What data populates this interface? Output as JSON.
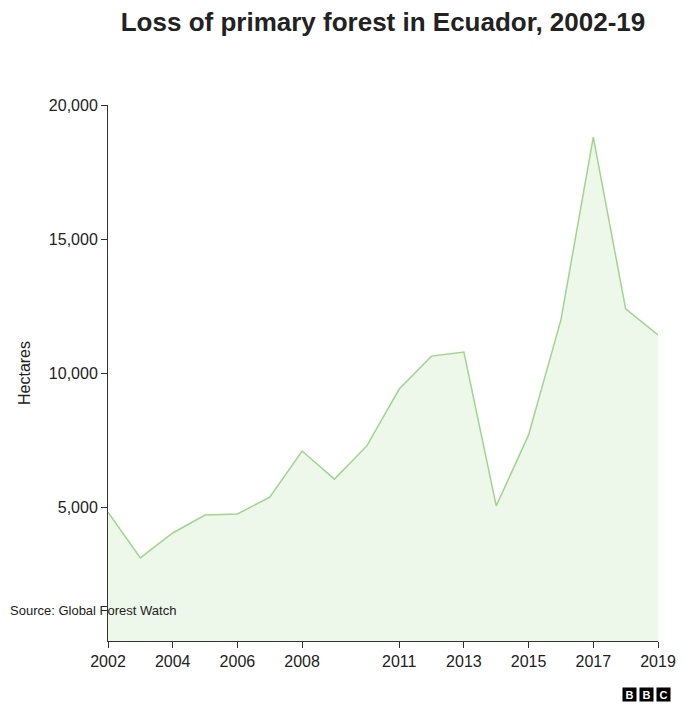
{
  "chart_data": {
    "type": "area",
    "title": "Loss of primary forest in Ecuador, 2002-19",
    "y_label": "Hectares",
    "source": "Source: Global Forest Watch",
    "logo": "BBC",
    "x": [
      2002,
      2003,
      2004,
      2005,
      2006,
      2007,
      2008,
      2009,
      2010,
      2011,
      2012,
      2013,
      2014,
      2015,
      2016,
      2017,
      2018,
      2019
    ],
    "values": [
      4810,
      3100,
      4030,
      4700,
      4740,
      5370,
      7090,
      6040,
      7280,
      9400,
      10630,
      10780,
      5040,
      7690,
      11980,
      18800,
      12390,
      11420
    ],
    "color": "#9dd68c",
    "xlim": [
      2002,
      2019
    ],
    "xticks": [
      2002,
      2004,
      2006,
      2008,
      2011,
      2013,
      2015,
      2017,
      2019
    ],
    "ylim": [
      0,
      20000
    ],
    "yticks": [
      {
        "value": 5000,
        "label": "5,000"
      },
      {
        "value": 10000,
        "label": "10,000"
      },
      {
        "value": 15000,
        "label": "15,000"
      },
      {
        "value": 20000,
        "label": "20,000"
      }
    ],
    "grid": false
  }
}
